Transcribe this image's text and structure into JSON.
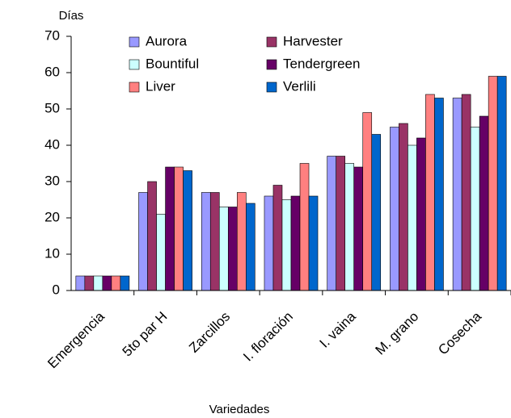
{
  "chart_data": {
    "type": "bar",
    "ylabel": "Días",
    "xlabel": "Variedades",
    "categories": [
      "Emergencia",
      "5to par H",
      "Zarcillos",
      "I. floración",
      "I. vaina",
      "M. grano",
      "Cosecha"
    ],
    "series": [
      {
        "name": "Aurora",
        "color": "#9999ff",
        "values": [
          4,
          27,
          27,
          26,
          37,
          45,
          53
        ]
      },
      {
        "name": "Harvester",
        "color": "#993366",
        "values": [
          4,
          30,
          27,
          29,
          37,
          46,
          54
        ]
      },
      {
        "name": "Bountiful",
        "color": "#ccffff",
        "values": [
          4,
          21,
          23,
          25,
          35,
          40,
          45
        ]
      },
      {
        "name": "Tendergreen",
        "color": "#660066",
        "values": [
          4,
          34,
          23,
          26,
          34,
          42,
          48
        ]
      },
      {
        "name": "Liver",
        "color": "#ff8080",
        "values": [
          4,
          34,
          27,
          35,
          49,
          54,
          59
        ]
      },
      {
        "name": "Verlili",
        "color": "#0066cc",
        "values": [
          4,
          33,
          24,
          26,
          43,
          53,
          59
        ]
      }
    ],
    "ylim": [
      0,
      70
    ],
    "yticks": [
      0,
      10,
      20,
      30,
      40,
      50,
      60,
      70
    ],
    "grid": false
  }
}
